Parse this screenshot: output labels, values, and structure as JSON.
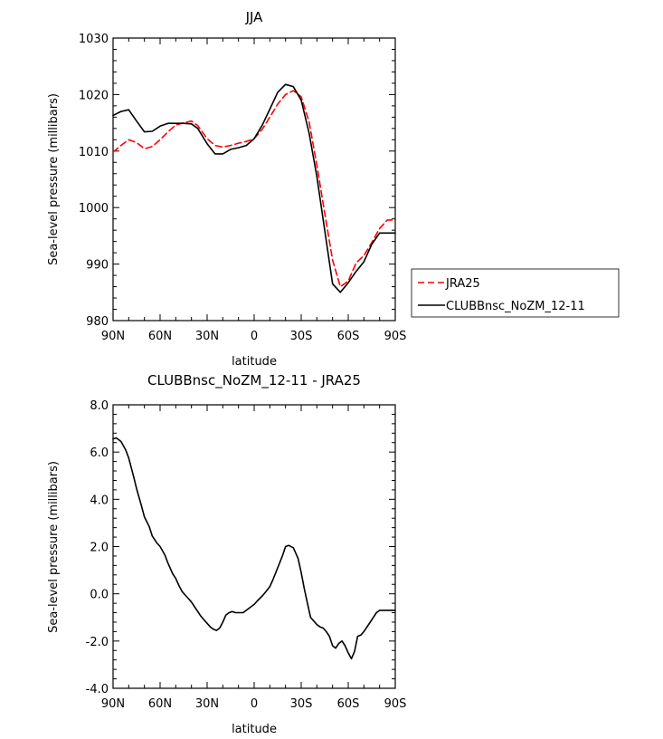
{
  "chart_data": [
    {
      "type": "line",
      "title": "JJA",
      "xlabel": "latitude",
      "ylabel": "Sea-level pressure (millibars)",
      "xlim": [
        90,
        -90
      ],
      "ylim": [
        980,
        1030
      ],
      "xticks": [
        {
          "value": 90,
          "label": "90N"
        },
        {
          "value": 60,
          "label": "60N"
        },
        {
          "value": 30,
          "label": "30N"
        },
        {
          "value": 0,
          "label": "0"
        },
        {
          "value": -30,
          "label": "30S"
        },
        {
          "value": -60,
          "label": "60S"
        },
        {
          "value": -90,
          "label": "90S"
        }
      ],
      "yticks": [
        {
          "value": 980,
          "label": "980"
        },
        {
          "value": 990,
          "label": "990"
        },
        {
          "value": 1000,
          "label": "1000"
        },
        {
          "value": 1010,
          "label": "1010"
        },
        {
          "value": 1020,
          "label": "1020"
        },
        {
          "value": 1030,
          "label": "1030"
        }
      ],
      "legend": "right",
      "series": [
        {
          "name": "JRA25",
          "color": "#ff0000",
          "dash": true,
          "x": [
            90,
            85,
            80,
            75,
            70,
            65,
            60,
            55,
            50,
            45,
            40,
            36,
            30,
            25,
            20,
            15,
            10,
            5,
            0,
            -5,
            -10,
            -15,
            -20,
            -25,
            -30,
            -35,
            -40,
            -45,
            -50,
            -55,
            -60,
            -65,
            -70,
            -75,
            -80,
            -85,
            -90
          ],
          "y": [
            1009.8,
            1011.0,
            1012.0,
            1011.5,
            1010.4,
            1010.8,
            1012.0,
            1013.4,
            1014.6,
            1015.0,
            1015.3,
            1014.5,
            1012.2,
            1011.0,
            1010.7,
            1011.0,
            1011.4,
            1011.7,
            1012.2,
            1013.8,
            1016.0,
            1018.3,
            1020.0,
            1020.7,
            1019.6,
            1015.2,
            1007.5,
            999.0,
            990.7,
            986.0,
            987.0,
            990.2,
            991.5,
            993.8,
            996.3,
            997.8,
            997.8
          ]
        },
        {
          "name": "CLUBBnsc_NoZM_12-11",
          "color": "#000000",
          "dash": false,
          "x": [
            90,
            85,
            80,
            75,
            70,
            65,
            60,
            55,
            50,
            45,
            40,
            36,
            30,
            25,
            20,
            15,
            10,
            5,
            0,
            -5,
            -10,
            -15,
            -20,
            -25,
            -30,
            -35,
            -40,
            -45,
            -50,
            -55,
            -60,
            -65,
            -70,
            -75,
            -80,
            -85,
            -90
          ],
          "y": [
            1016.3,
            1017.0,
            1017.3,
            1015.3,
            1013.4,
            1013.5,
            1014.4,
            1014.9,
            1014.9,
            1014.9,
            1014.8,
            1014.0,
            1011.3,
            1009.5,
            1009.5,
            1010.3,
            1010.6,
            1011.0,
            1012.2,
            1014.5,
            1017.4,
            1020.4,
            1021.8,
            1021.4,
            1019.0,
            1013.2,
            1005.5,
            996.0,
            986.5,
            985.0,
            986.7,
            988.7,
            990.4,
            993.5,
            995.5,
            995.5,
            995.5
          ]
        }
      ]
    },
    {
      "type": "line",
      "title": "CLUBBnsc_NoZM_12-11 - JRA25",
      "xlabel": "latitude",
      "ylabel": "Sea-level pressure (millibars)",
      "xlim": [
        90,
        -90
      ],
      "ylim": [
        -4.0,
        8.0
      ],
      "xticks": [
        {
          "value": 90,
          "label": "90N"
        },
        {
          "value": 60,
          "label": "60N"
        },
        {
          "value": 30,
          "label": "30N"
        },
        {
          "value": 0,
          "label": "0"
        },
        {
          "value": -30,
          "label": "30S"
        },
        {
          "value": -60,
          "label": "60S"
        },
        {
          "value": -90,
          "label": "90S"
        }
      ],
      "yticks": [
        {
          "value": -4,
          "label": "-4.0"
        },
        {
          "value": -2,
          "label": "-2.0"
        },
        {
          "value": 0,
          "label": "0.0"
        },
        {
          "value": 2,
          "label": "2.0"
        },
        {
          "value": 4,
          "label": "4.0"
        },
        {
          "value": 6,
          "label": "6.0"
        },
        {
          "value": 8,
          "label": "8.0"
        }
      ],
      "series": [
        {
          "color": "#000000",
          "dash": false,
          "x": [
            90,
            88,
            85,
            82,
            80,
            77,
            75,
            72,
            70,
            67,
            65,
            62,
            60,
            57,
            55,
            52,
            50,
            48,
            46,
            44,
            42,
            40,
            38,
            36,
            34,
            32,
            30,
            28,
            26,
            24,
            22,
            20,
            18,
            16,
            14,
            12,
            10,
            7,
            5,
            2,
            0,
            -2,
            -5,
            -7,
            -10,
            -12,
            -15,
            -18,
            -20,
            -22,
            -25,
            -28,
            -30,
            -32,
            -34,
            -36,
            -38,
            -40,
            -42,
            -44,
            -46,
            -48,
            -50,
            -52,
            -54,
            -56,
            -58,
            -60,
            -62,
            -64,
            -66,
            -68,
            -70,
            -72,
            -74,
            -76,
            -78,
            -80,
            -82,
            -84,
            -86,
            -88,
            -90
          ],
          "y": [
            6.55,
            6.6,
            6.45,
            6.1,
            5.75,
            5.0,
            4.45,
            3.75,
            3.25,
            2.85,
            2.45,
            2.15,
            2.0,
            1.65,
            1.3,
            0.85,
            0.65,
            0.35,
            0.1,
            -0.05,
            -0.2,
            -0.35,
            -0.55,
            -0.75,
            -0.95,
            -1.1,
            -1.25,
            -1.4,
            -1.5,
            -1.55,
            -1.45,
            -1.2,
            -0.9,
            -0.8,
            -0.75,
            -0.8,
            -0.8,
            -0.8,
            -0.7,
            -0.55,
            -0.45,
            -0.3,
            -0.1,
            0.05,
            0.3,
            0.6,
            1.1,
            1.6,
            2.0,
            2.05,
            1.95,
            1.5,
            0.9,
            0.2,
            -0.4,
            -1.0,
            -1.15,
            -1.3,
            -1.4,
            -1.45,
            -1.6,
            -1.8,
            -2.2,
            -2.3,
            -2.1,
            -2.0,
            -2.2,
            -2.5,
            -2.75,
            -2.45,
            -1.8,
            -1.75,
            -1.6,
            -1.4,
            -1.2,
            -1.0,
            -0.8,
            -0.7,
            -0.7,
            -0.7,
            -0.7,
            -0.7,
            -0.7
          ]
        }
      ]
    }
  ]
}
